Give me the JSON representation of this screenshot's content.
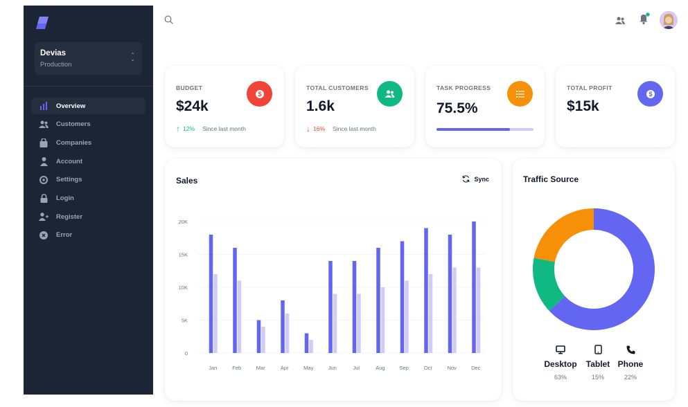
{
  "sidebar": {
    "logo_icon": "logo-icon",
    "workspace": {
      "name": "Devias",
      "env": "Production"
    },
    "items": [
      {
        "label": "Overview",
        "icon": "chart-bar-icon",
        "active": true
      },
      {
        "label": "Customers",
        "icon": "users-icon",
        "active": false
      },
      {
        "label": "Companies",
        "icon": "shopping-bag-icon",
        "active": false
      },
      {
        "label": "Account",
        "icon": "user-icon",
        "active": false
      },
      {
        "label": "Settings",
        "icon": "cog-icon",
        "active": false
      },
      {
        "label": "Login",
        "icon": "lock-icon",
        "active": false
      },
      {
        "label": "Register",
        "icon": "user-plus-icon",
        "active": false
      },
      {
        "label": "Error",
        "icon": "x-circle-icon",
        "active": false
      }
    ]
  },
  "topbar": {
    "icons": [
      "search-icon",
      "users-icon",
      "bell-icon",
      "avatar"
    ]
  },
  "stats": {
    "budget": {
      "label": "BUDGET",
      "value": "$24k",
      "trend_pct": "12%",
      "trend_text": "Since last month",
      "trend": "up"
    },
    "customers": {
      "label": "TOTAL CUSTOMERS",
      "value": "1.6k",
      "trend_pct": "16%",
      "trend_text": "Since last month",
      "trend": "down"
    },
    "task": {
      "label": "TASK PROGRESS",
      "value": "75.5%",
      "progress": 75.5
    },
    "profit": {
      "label": "TOTAL PROFIT",
      "value": "$15k"
    }
  },
  "colors": {
    "primary": "#6366f1",
    "primary_light": "#cfcdf7",
    "error": "#f04438",
    "success": "#10b981",
    "warning": "#f79009",
    "sidebar_bg": "#1c2536"
  },
  "sales": {
    "title": "Sales",
    "sync_label": "Sync"
  },
  "traffic": {
    "title": "Traffic Source",
    "items": [
      {
        "label": "Desktop",
        "value": "63%",
        "icon": "desktop-icon"
      },
      {
        "label": "Tablet",
        "value": "15%",
        "icon": "tablet-icon"
      },
      {
        "label": "Phone",
        "value": "22%",
        "icon": "phone-icon"
      }
    ]
  },
  "chart_data": [
    {
      "type": "bar",
      "title": "Sales",
      "categories": [
        "Jan",
        "Feb",
        "Mar",
        "Apr",
        "May",
        "Jun",
        "Jul",
        "Aug",
        "Sep",
        "Oct",
        "Nov",
        "Dec"
      ],
      "series": [
        {
          "values": [
            18,
            16,
            5,
            8,
            3,
            14,
            14,
            16,
            17,
            19,
            18,
            20
          ],
          "color": "#6366f1"
        },
        {
          "values": [
            12,
            11,
            4,
            6,
            2,
            9,
            9,
            10,
            11,
            12,
            13,
            13
          ],
          "color": "#cfcdf7"
        }
      ],
      "yticks": [
        "0",
        "5K",
        "10K",
        "15K",
        "20K"
      ],
      "ylim": [
        0,
        20
      ],
      "grid": true
    },
    {
      "type": "pie",
      "title": "Traffic Source",
      "categories": [
        "Desktop",
        "Tablet",
        "Phone"
      ],
      "values": [
        63,
        15,
        22
      ],
      "colors": [
        "#6366f1",
        "#10b981",
        "#f79009"
      ]
    }
  ]
}
